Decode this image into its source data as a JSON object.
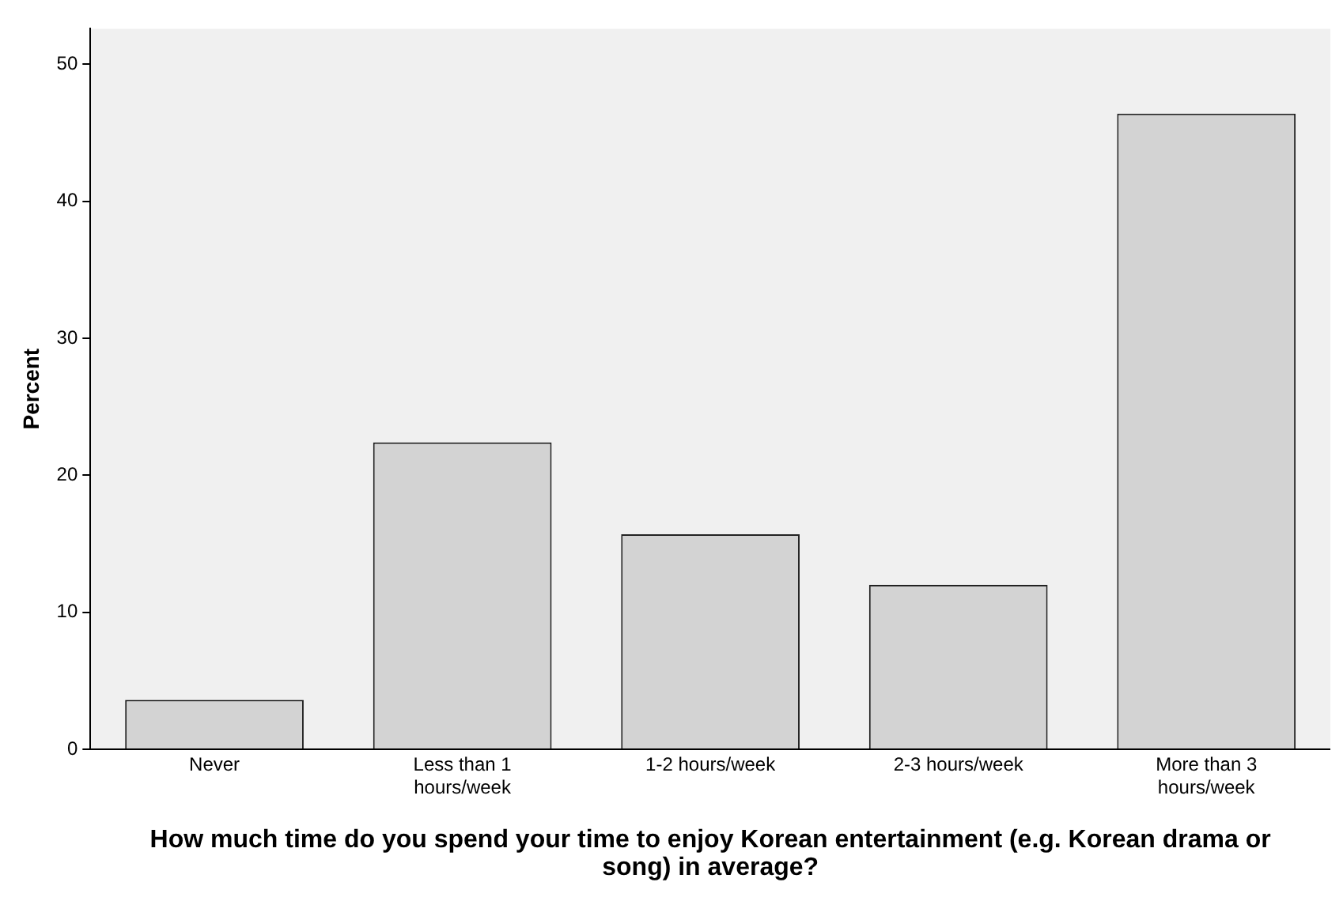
{
  "chart_data": {
    "type": "bar",
    "xlabel": "How much time do you spend your time to enjoy Korean entertainment (e.g. Korean drama or song) in average?",
    "ylabel": "Percent",
    "categories": [
      "Never",
      "Less than 1 hours/week",
      "1-2 hours/week",
      "2-3 hours/week",
      "More than 3 hours/week"
    ],
    "values": [
      3.6,
      22.4,
      15.7,
      12.0,
      46.4
    ],
    "color": "#d3d3d3",
    "ylim": [
      0,
      52.6
    ],
    "yticks": [
      0,
      10,
      20,
      30,
      40,
      50
    ],
    "grid": false,
    "legend": false
  }
}
